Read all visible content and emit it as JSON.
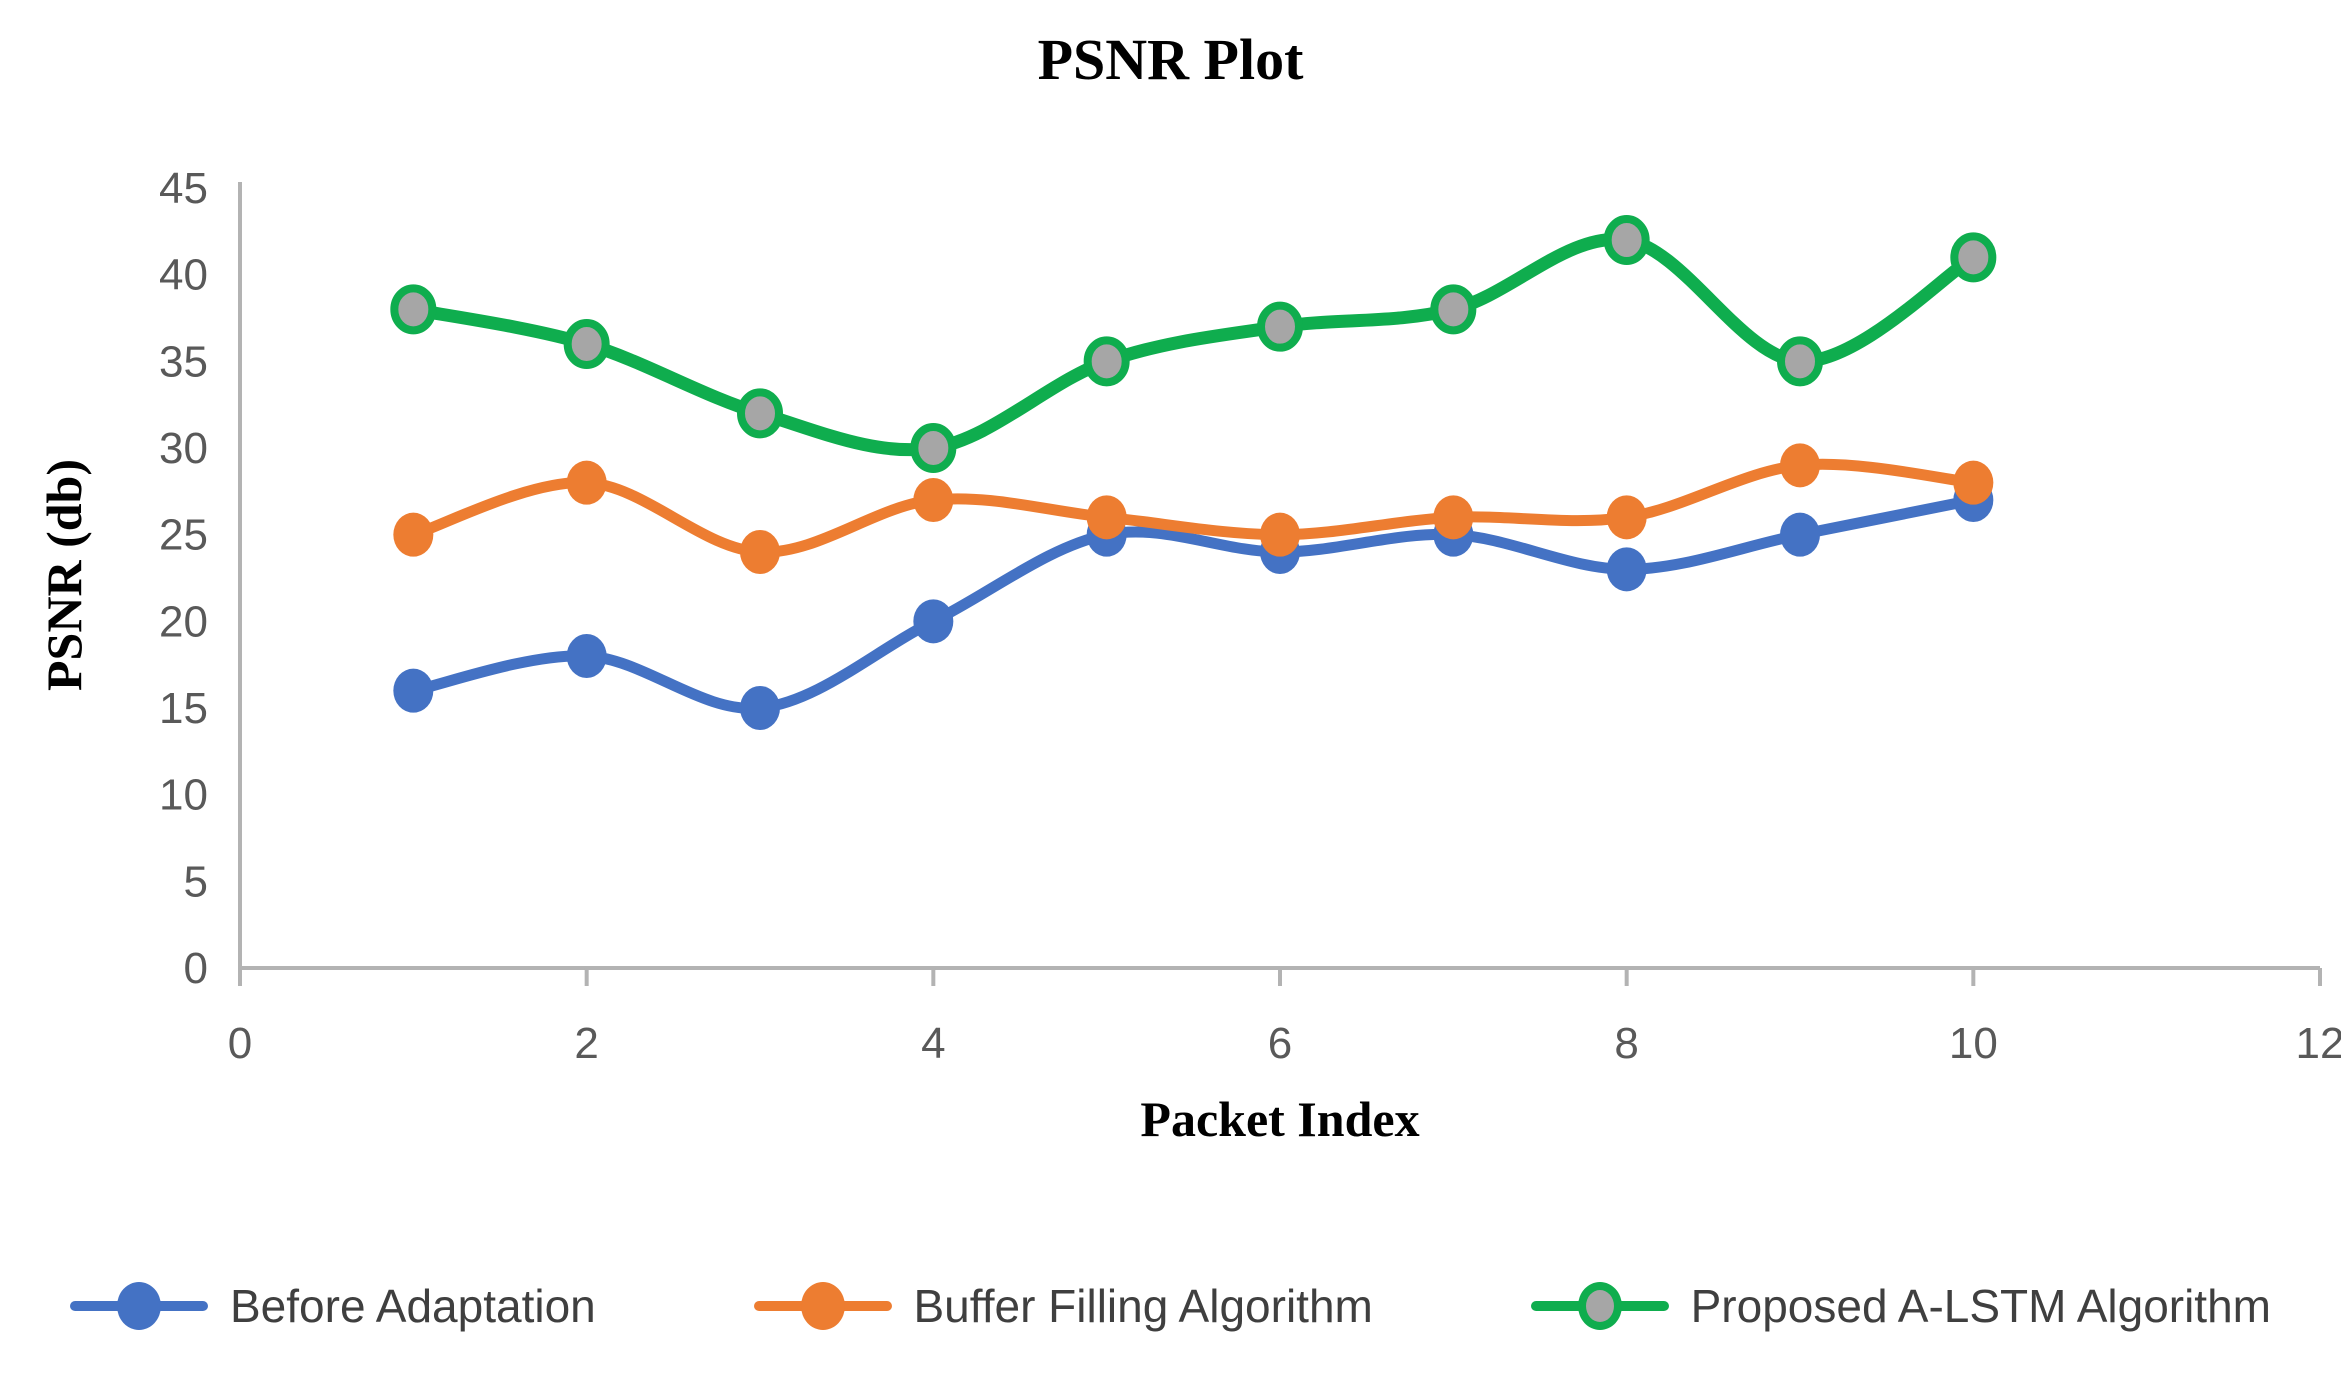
{
  "chart_data": {
    "type": "line",
    "title": "PSNR Plot",
    "xlabel": "Packet Index",
    "ylabel": "PSNR (db)",
    "x": [
      1,
      2,
      3,
      4,
      5,
      6,
      7,
      8,
      9,
      10
    ],
    "series": [
      {
        "name": "Before Adaptation",
        "color": "#4472C4",
        "marker_fill": "#4472C4",
        "marker_stroke": "#4472C4",
        "values": [
          16,
          18,
          15,
          20,
          25,
          24,
          25,
          23,
          25,
          27
        ]
      },
      {
        "name": "Buffer Filling Algorithm",
        "color": "#ED7D31",
        "marker_fill": "#ED7D31",
        "marker_stroke": "#ED7D31",
        "values": [
          25,
          28,
          24,
          27,
          26,
          25,
          26,
          26,
          29,
          28
        ]
      },
      {
        "name": "Proposed A-LSTM Algorithm",
        "color": "#0FAD4E",
        "marker_fill": "#A6A6A6",
        "marker_stroke": "#0FAD4E",
        "values": [
          38,
          36,
          32,
          30,
          35,
          37,
          38,
          42,
          35,
          41
        ]
      }
    ],
    "xlim": [
      0,
      12
    ],
    "ylim": [
      0,
      45
    ],
    "xticks": [
      0,
      2,
      4,
      6,
      8,
      10,
      12
    ],
    "yticks": [
      0,
      5,
      10,
      15,
      20,
      25,
      30,
      35,
      40,
      45
    ],
    "grid": false,
    "smoothed": true,
    "legend_position": "bottom",
    "axis_color": "#B3B3B3",
    "tick_label_color": "#595959",
    "legend_text_color": "#3F3F3F"
  }
}
